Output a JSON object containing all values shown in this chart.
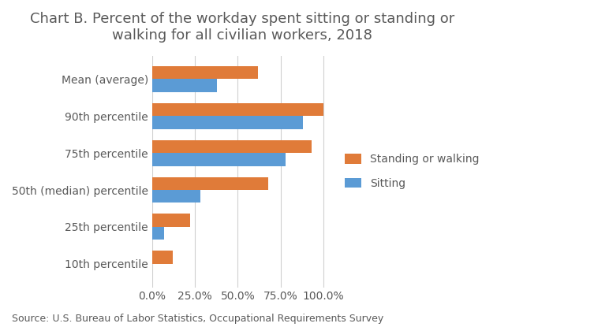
{
  "title": "Chart B. Percent of the workday spent sitting or standing or\nwalking for all civilian workers, 2018",
  "categories": [
    "Mean (average)",
    "90th percentile",
    "75th percentile",
    "50th (median) percentile",
    "25th percentile",
    "10th percentile"
  ],
  "standing_or_walking": [
    0.62,
    1.0,
    0.93,
    0.68,
    0.22,
    0.12
  ],
  "sitting": [
    0.38,
    0.88,
    0.78,
    0.28,
    0.07,
    0.0
  ],
  "color_standing": "#E07B39",
  "color_sitting": "#5B9BD5",
  "source": "Source: U.S. Bureau of Labor Statistics, Occupational Requirements Survey",
  "xlim": [
    0,
    1.05
  ],
  "xticks": [
    0.0,
    0.25,
    0.5,
    0.75,
    1.0
  ],
  "xticklabels": [
    "0.0%",
    "25.0%",
    "50.0%",
    "75.0%",
    "100.0%"
  ],
  "legend_labels": [
    "Standing or walking",
    "Sitting"
  ],
  "bar_height": 0.35,
  "background_color": "#ffffff",
  "title_color": "#595959",
  "label_color": "#595959",
  "source_fontsize": 9,
  "title_fontsize": 13,
  "tick_fontsize": 10,
  "legend_fontsize": 10
}
